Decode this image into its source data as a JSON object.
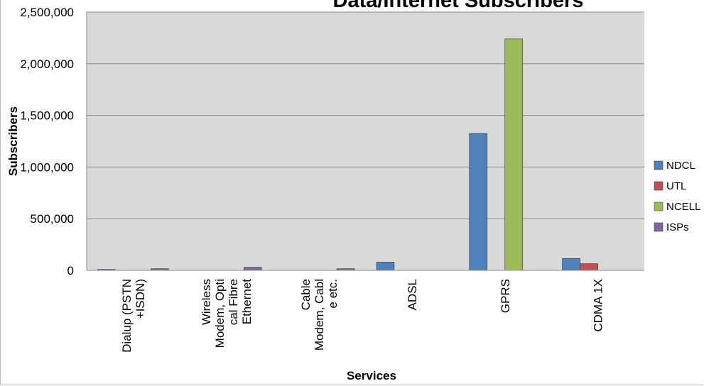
{
  "chart_data": {
    "type": "bar",
    "title": "Data/Internet Subscribers",
    "xlabel": "Services",
    "ylabel": "Subscribers",
    "categories": [
      [
        "Dialup (PSTN",
        "+ISDN)"
      ],
      [
        "Wireless",
        "Modem, Opti",
        "cal Fibre",
        "Ethernet"
      ],
      [
        "Cable",
        "Modem, Cabl",
        "e etc."
      ],
      [
        "ADSL"
      ],
      [
        "GPRS"
      ],
      [
        "CDMA 1X"
      ]
    ],
    "series": [
      {
        "name": "NDCL",
        "color": "#4f81bd",
        "values": [
          9000,
          0,
          0,
          80000,
          1325000,
          115000
        ]
      },
      {
        "name": "UTL",
        "color": "#c0504d",
        "values": [
          0,
          0,
          0,
          0,
          0,
          65000
        ]
      },
      {
        "name": "NCELL",
        "color": "#9bbb59",
        "values": [
          0,
          0,
          0,
          0,
          2240000,
          0
        ]
      },
      {
        "name": "ISPs",
        "color": "#8064a2",
        "values": [
          16000,
          30000,
          16000,
          0,
          0,
          0
        ]
      }
    ],
    "yticks": [
      "0",
      "500,000",
      "1,000,000",
      "1,500,000",
      "2,000,000",
      "2,500,000"
    ],
    "ylim": [
      0,
      2500000
    ],
    "grid": true,
    "legend": "right"
  }
}
